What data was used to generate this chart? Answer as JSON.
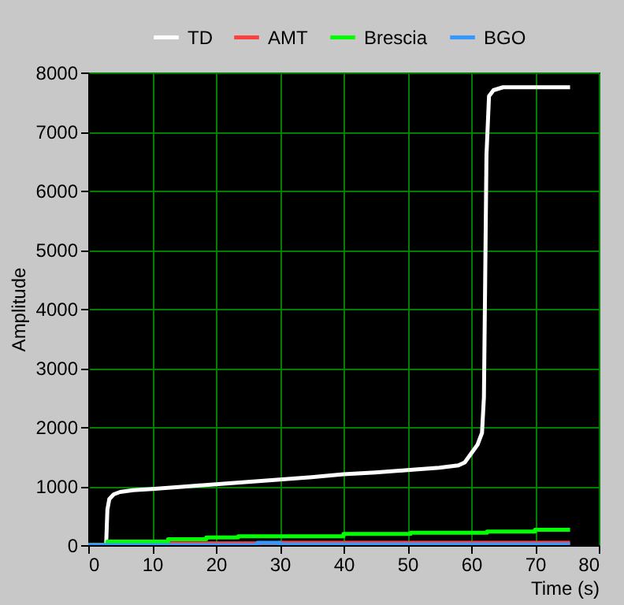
{
  "chart_data": {
    "type": "line",
    "xlabel": "Time (s)",
    "ylabel": "Amplitude",
    "xlim": [
      0,
      80
    ],
    "xticks": [
      0,
      10,
      20,
      30,
      40,
      50,
      60,
      70,
      80
    ],
    "ylim": [
      0,
      8000
    ],
    "yticks": [
      0,
      1000,
      2000,
      3000,
      4000,
      5000,
      6000,
      7000,
      8000
    ],
    "grid": true,
    "legend": "top right",
    "marker": "none",
    "line_style": "solid",
    "series": [
      {
        "name": "TD",
        "color": "#ffffff",
        "x": [
          0,
          2.8,
          3,
          3.3,
          4,
          5,
          7,
          10,
          15,
          20,
          25,
          30,
          35,
          40,
          45,
          50,
          55,
          58,
          59,
          60,
          61,
          61.7,
          62,
          62.2,
          62.4,
          62.8,
          63.5,
          65,
          75.5
        ],
        "values": [
          0,
          0,
          600,
          780,
          860,
          900,
          930,
          950,
          990,
          1030,
          1070,
          1110,
          1150,
          1200,
          1230,
          1270,
          1310,
          1350,
          1400,
          1550,
          1700,
          1900,
          2500,
          4500,
          6600,
          7600,
          7700,
          7750,
          7750
        ]
      },
      {
        "name": "AMT",
        "color": "#ff4040",
        "type": "step",
        "x": [
          0,
          3,
          30,
          75.5
        ],
        "values": [
          0,
          30,
          40,
          40
        ]
      },
      {
        "name": "Brescia",
        "color": "#00ff00",
        "type": "step",
        "x": [
          0,
          3,
          12.5,
          18.5,
          23.5,
          40,
          50.5,
          62.5,
          70,
          75.5
        ],
        "values": [
          0,
          60,
          100,
          130,
          150,
          190,
          210,
          230,
          260,
          260
        ]
      },
      {
        "name": "BGO",
        "color": "#3399ff",
        "type": "step",
        "x": [
          0,
          26.5,
          30,
          75.5
        ],
        "values": [
          0,
          40,
          10,
          10
        ]
      }
    ]
  }
}
